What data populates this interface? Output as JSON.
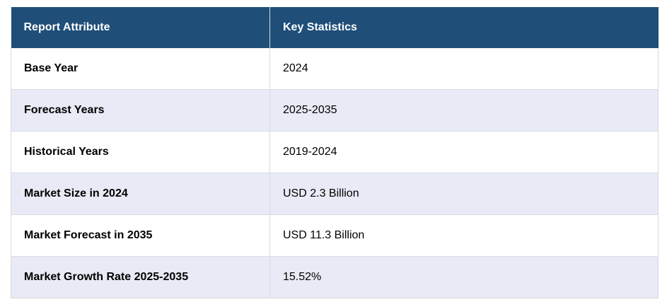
{
  "table": {
    "headers": [
      "Report Attribute",
      "Key Statistics"
    ],
    "rows": [
      [
        "Base Year",
        "2024"
      ],
      [
        "Forecast Years",
        "2025-2035"
      ],
      [
        "Historical Years",
        "2019-2024"
      ],
      [
        "Market Size in 2024",
        "USD 2.3 Billion"
      ],
      [
        "Market Forecast in 2035",
        "USD 11.3 Billion"
      ],
      [
        "Market Growth Rate 2025-2035",
        "15.52%"
      ]
    ]
  },
  "colors": {
    "header_bg": "#1f4e79",
    "header_text": "#ffffff",
    "stripe_bg": "#e8eaf5",
    "border": "#d9dbe3"
  }
}
